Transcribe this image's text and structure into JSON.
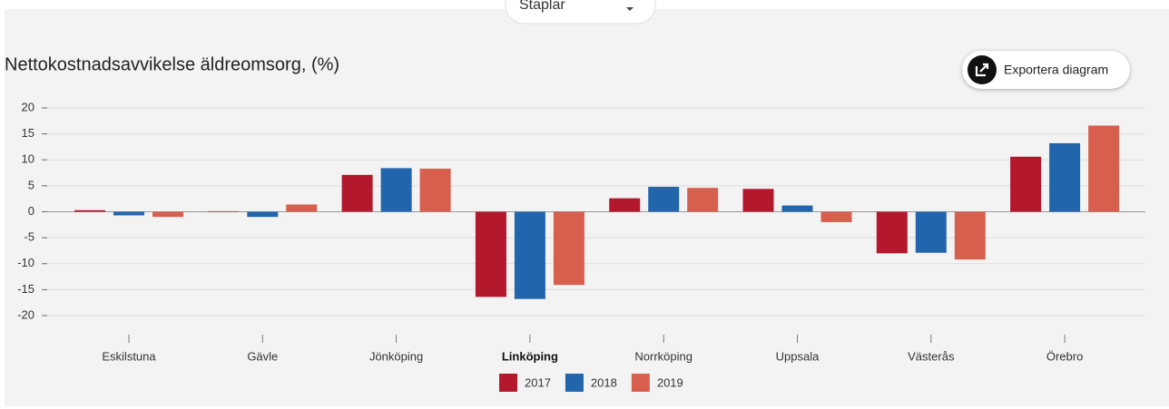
{
  "chart_data": {
    "type": "bar",
    "title": "Nettokostnadsavvikelse äldreomsorg, (%)",
    "dropdown": "Staplar",
    "export_button": "Exportera diagram",
    "categories": [
      "Eskilstuna",
      "Gävle",
      "Jönköping",
      "Linköping",
      "Norrköping",
      "Uppsala",
      "Västerås",
      "Örebro"
    ],
    "highlight_category": 3,
    "series": [
      {
        "name": "2017",
        "color": "#b3182c",
        "values": [
          0.3,
          0.1,
          7.1,
          -16.4,
          2.6,
          4.4,
          -8.0,
          10.6
        ]
      },
      {
        "name": "2018",
        "color": "#2166ac",
        "values": [
          -0.7,
          -1.0,
          8.4,
          -16.8,
          4.8,
          1.2,
          -7.9,
          13.2
        ]
      },
      {
        "name": "2019",
        "color": "#d6604d",
        "values": [
          -1.0,
          1.4,
          8.3,
          -14.1,
          4.6,
          -2.0,
          -9.2,
          16.6
        ]
      }
    ],
    "ylim": [
      -20,
      20
    ],
    "yticks": [
      -20,
      -15,
      -10,
      -5,
      0,
      5,
      10,
      15,
      20
    ],
    "grid": true,
    "legend": "bottom"
  }
}
